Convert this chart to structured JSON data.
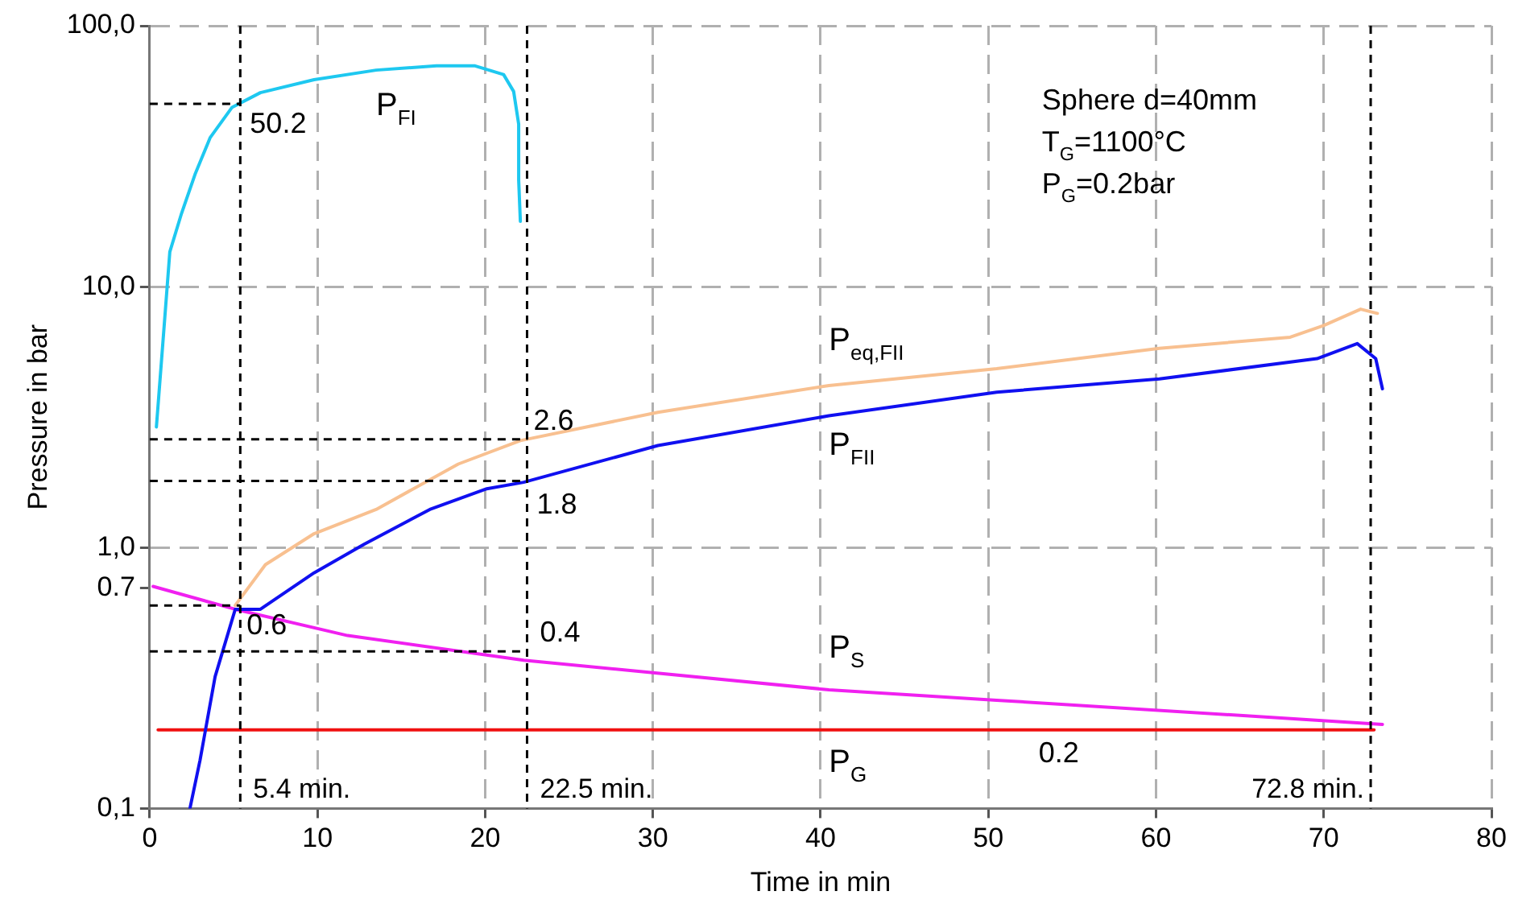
{
  "chart_data": {
    "type": "line",
    "xlabel": "Time in min",
    "ylabel": "Pressure in bar",
    "log": "y",
    "grid": true,
    "legend": false,
    "marker": "none",
    "line_style": "solid",
    "xlim": [
      0,
      80
    ],
    "xticks": [
      0,
      10,
      20,
      30,
      40,
      50,
      60,
      70,
      80
    ],
    "ylim": [
      0.1,
      100
    ],
    "yticks": [
      {
        "value": 0.1,
        "label": "0,1"
      },
      {
        "value": 0.7,
        "label": "0.7"
      },
      {
        "value": 1,
        "label": "1,0"
      },
      {
        "value": 10,
        "label": "10,0"
      },
      {
        "value": 100,
        "label": "100,0"
      }
    ],
    "series": [
      {
        "name": "P$_{FI}$",
        "color": "#1ec8f0",
        "x": [
          0.4,
          0.9,
          1.2,
          1.9,
          2.7,
          3.6,
          4.9,
          6.6,
          9.8,
          13.5,
          17.1,
          19.4,
          21.1,
          21.7,
          22.0,
          22.0,
          22.1
        ],
        "values": [
          2.9,
          7.6,
          13.6,
          19.1,
          26.9,
          37.2,
          48.6,
          55.4,
          62.1,
          67.6,
          70.2,
          70.2,
          65,
          56,
          42,
          25.6,
          17.8
        ]
      },
      {
        "name": "P$_{eq,FII}$",
        "color": "#f8c090",
        "x": [
          5.1,
          6.9,
          9.8,
          13.5,
          18.4,
          22.1,
          30.3,
          40.5,
          50.5,
          60.2,
          68,
          70,
          72.2,
          73.2
        ],
        "values": [
          0.6,
          0.86,
          1.13,
          1.4,
          2.09,
          2.57,
          3.3,
          4.18,
          4.85,
          5.8,
          6.4,
          7.1,
          8.2,
          7.9
        ]
      },
      {
        "name": "P$_{FII}$",
        "color": "#1010f0",
        "x": [
          2.4,
          3.0,
          3.9,
          4.8,
          5.1,
          6.6,
          9.8,
          12.8,
          16.7,
          20.1,
          22.3,
          30.3,
          40.5,
          50.5,
          60.2,
          69.6,
          72.0,
          73.1,
          73.5
        ],
        "values": [
          0.1,
          0.153,
          0.32,
          0.5,
          0.58,
          0.58,
          0.8,
          1.03,
          1.4,
          1.68,
          1.78,
          2.46,
          3.2,
          3.94,
          4.43,
          5.3,
          6.05,
          5.3,
          4.06
        ]
      },
      {
        "name": "P$_{S}$",
        "color": "#f020f0",
        "x": [
          0.2,
          5.1,
          11.8,
          22.3,
          40.5,
          50.5,
          73.5
        ],
        "values": [
          0.71,
          0.58,
          0.46,
          0.37,
          0.285,
          0.26,
          0.21
        ]
      },
      {
        "name": "P$_{G}$",
        "color": "#f01010",
        "x": [
          0.5,
          40.5,
          73
        ],
        "values": [
          0.2,
          0.2,
          0.2
        ]
      }
    ],
    "ref_lines": [
      {
        "axis": "x",
        "value": 5.4,
        "label": "5.4 min.",
        "color": "#000000",
        "line_style": "dashed"
      },
      {
        "axis": "x",
        "value": 22.5,
        "label": "22.5 min.",
        "color": "#000000",
        "line_style": "dashed"
      },
      {
        "axis": "x",
        "value": 72.8,
        "label": "72.8 min.",
        "color": "#000000",
        "line_style": "dashed"
      }
    ],
    "annotations": [
      "Sphere d=40mm",
      "T$_{G}$=1100°C",
      "P$_{G}$=0.2bar",
      {
        "text": "50.2",
        "x": 5.4,
        "y": 50.2
      },
      {
        "text": "2.6",
        "x": 22.5,
        "y": 2.6
      },
      {
        "text": "1.8",
        "x": 22.5,
        "y": 1.8
      },
      {
        "text": "0.6",
        "x": 5.4,
        "y": 0.6
      },
      {
        "text": "0.4",
        "x": 22.5,
        "y": 0.4
      },
      {
        "text": "0.2",
        "x": 53,
        "y": 0.2
      }
    ]
  }
}
